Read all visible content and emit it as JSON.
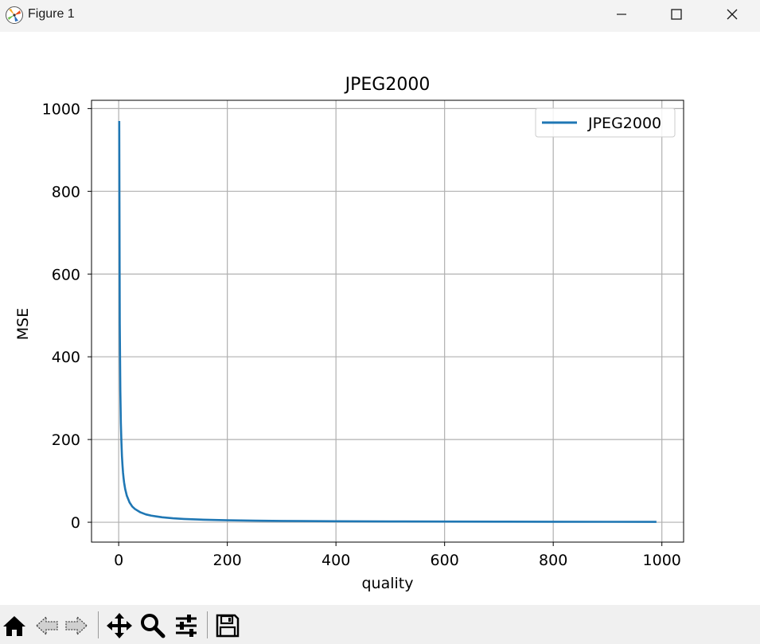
{
  "window": {
    "title": "Figure 1",
    "controls": [
      "minimize",
      "maximize",
      "close"
    ]
  },
  "toolbar": {
    "buttons": [
      {
        "name": "home",
        "icon": "home-icon"
      },
      {
        "name": "back",
        "icon": "back-arrow-icon"
      },
      {
        "name": "forward",
        "icon": "forward-arrow-icon"
      },
      {
        "name": "pan",
        "icon": "move-icon"
      },
      {
        "name": "zoom",
        "icon": "magnifier-icon"
      },
      {
        "name": "configure-subplots",
        "icon": "sliders-icon"
      },
      {
        "name": "save",
        "icon": "floppy-disk-icon"
      }
    ]
  },
  "chart_data": {
    "type": "line",
    "title": "JPEG2000",
    "xlabel": "quality",
    "ylabel": "MSE",
    "xlim": [
      -50,
      1040
    ],
    "ylim": [
      -48,
      1020
    ],
    "xticks": [
      0,
      200,
      400,
      600,
      800,
      1000
    ],
    "yticks": [
      0,
      200,
      400,
      600,
      800,
      1000
    ],
    "grid": true,
    "legend_position": "upper right",
    "series": [
      {
        "name": "JPEG2000",
        "color": "#1f77b4",
        "x": [
          1,
          2,
          3,
          4,
          5,
          6,
          7,
          8,
          9,
          10,
          12,
          15,
          20,
          25,
          30,
          40,
          50,
          60,
          70,
          80,
          100,
          120,
          150,
          200,
          250,
          300,
          400,
          500,
          600,
          700,
          800,
          900,
          990
        ],
        "y": [
          970,
          480,
          320,
          240,
          195,
          160,
          138,
          120,
          107,
          96,
          80,
          64,
          48,
          38,
          32,
          24,
          19,
          16,
          14,
          12,
          9.6,
          8,
          6.4,
          4.8,
          3.8,
          3.2,
          2.4,
          1.9,
          1.6,
          1.4,
          1.2,
          1.07,
          0.98
        ]
      }
    ]
  }
}
